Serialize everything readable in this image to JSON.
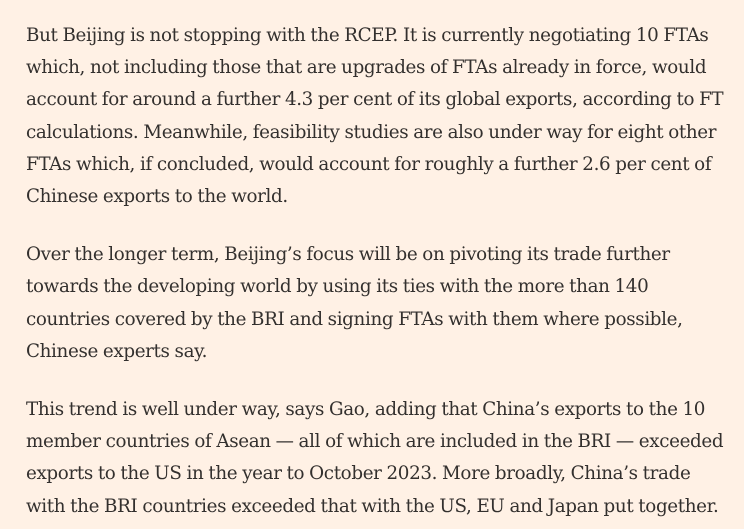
{
  "article": {
    "paragraphs": [
      "But Beijing is not stopping with the RCEP. It is currently negotiating 10 FTAs which, not including those that are upgrades of FTAs already in force, would account for around a further 4.3 per cent of its global exports, according to FT calculations. Meanwhile, feasibility studies are also under way for eight other FTAs which, if concluded, would account for roughly a further 2.6 per cent of Chinese exports to the world.",
      "Over the longer term, Beijing’s focus will be on pivoting its trade further towards the developing world by using its ties with the more than 140 countries covered by the BRI and signing FTAs with them where possible, Chinese experts say.",
      "This trend is well under way, says Gao, adding that China’s exports to the 10 member countries of Asean — all of which are included in the BRI — exceeded exports to the US in the year to October 2023. More broadly, China’s trade with the BRI countries exceeded that with the US, EU and Japan put together."
    ]
  }
}
